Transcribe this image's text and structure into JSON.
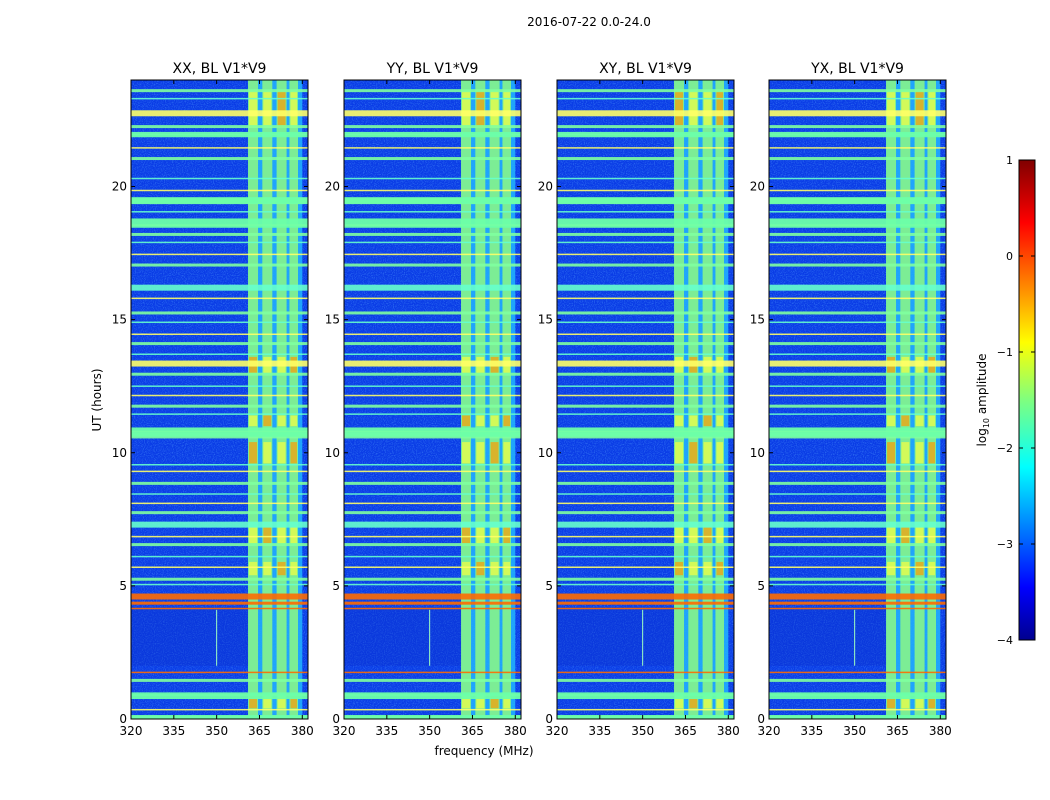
{
  "chart_data": {
    "type": "heatmap",
    "suptitle": "2016-07-22 0.0-24.0",
    "xlabel": "frequency (MHz)",
    "ylabel": "UT (hours)",
    "xlim": [
      320,
      382
    ],
    "ylim": [
      0,
      24
    ],
    "xticks": [
      320,
      335,
      350,
      365,
      380
    ],
    "xtick_labels": [
      "320",
      "335",
      "350",
      "365",
      "380"
    ],
    "yticks": [
      0,
      5,
      10,
      15,
      20
    ],
    "ytick_labels": [
      "0",
      "5",
      "10",
      "15",
      "20"
    ],
    "colorbar": {
      "label": "log10 amplitude",
      "label_main": "log",
      "label_sub": "10",
      "label_rest": " amplitude",
      "range": [
        -4,
        1
      ],
      "ticks": [
        1,
        0,
        -1,
        -2,
        -3,
        -4
      ],
      "tick_labels": [
        "1",
        "0",
        "−1",
        "−2",
        "−3",
        "−4"
      ],
      "colormap": "jet"
    },
    "panels": [
      {
        "title": "XX, BL V1*V9"
      },
      {
        "title": "YY, BL V1*V9"
      },
      {
        "title": "XY, BL V1*V9"
      },
      {
        "title": "YX, BL V1*V9"
      }
    ],
    "rfi_band_mhz": [
      361,
      380
    ],
    "rfi_subbands_mhz": [
      [
        361,
        364.5
      ],
      [
        366,
        369.5
      ],
      [
        371,
        374.5
      ],
      [
        375.5,
        378.5
      ]
    ],
    "flagged_rows_hours": [
      0.0,
      0.35,
      0.9,
      1.45,
      1.75,
      4.15,
      4.35,
      4.6,
      5.05,
      5.25,
      5.7,
      6.1,
      6.55,
      6.85,
      7.3,
      7.75,
      8.1,
      8.45,
      8.85,
      9.3,
      9.55,
      10.65,
      10.8,
      11.45,
      11.75,
      12.15,
      12.5,
      12.95,
      13.35,
      13.7,
      14.1,
      14.45,
      14.9,
      15.25,
      15.8,
      16.2,
      17.05,
      17.45,
      17.9,
      18.2,
      18.55,
      19.05,
      19.45,
      19.85,
      20.3,
      21.05,
      21.45,
      21.95,
      22.25,
      22.75,
      23.3,
      23.6
    ]
  }
}
